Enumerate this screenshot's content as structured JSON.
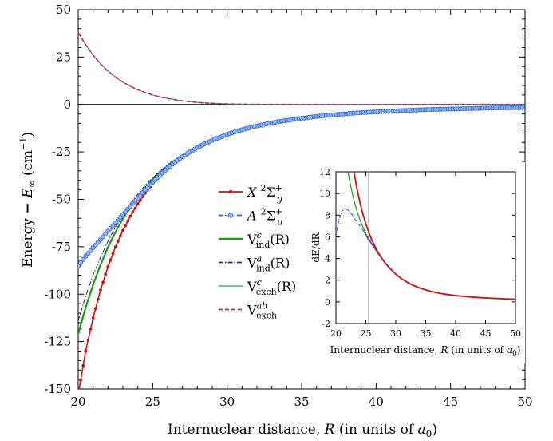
{
  "chart_data": [
    {
      "type": "line",
      "xlabel": "Internuclear distance, R (in units of a0)",
      "ylabel": "Energy − E∞ (cm−1)",
      "xlim": [
        20,
        50
      ],
      "ylim": [
        -150,
        50
      ],
      "x_ticks": [
        "20",
        "25",
        "30",
        "35",
        "40",
        "45",
        "50"
      ],
      "y_ticks": [
        "50",
        "25",
        "0",
        "-25",
        "-50",
        "-75",
        "-100",
        "-125",
        "-150"
      ],
      "grid": false,
      "legend_position": "center",
      "x": [
        20,
        20.5,
        21,
        21.5,
        22,
        22.5,
        23,
        23.5,
        24,
        24.5,
        25,
        25.5,
        26,
        26.5,
        27,
        27.5,
        28,
        28.5,
        29,
        29.5,
        30,
        30.5,
        31,
        31.5,
        32,
        32.5,
        33,
        33.5,
        34,
        34.5,
        35,
        35.5,
        36,
        36.5,
        37,
        37.5,
        38,
        38.5,
        39,
        39.5,
        40,
        40.5,
        41,
        41.5,
        42,
        42.5,
        43,
        43.5,
        44,
        44.5,
        45,
        45.5,
        46,
        46.5,
        47,
        47.5,
        48,
        48.5,
        49,
        49.5,
        50
      ],
      "series": [
        {
          "name": "X ²Σg⁺",
          "color": "#cc1111",
          "style": "solid-dots",
          "values": [
            -153,
            -130,
            -112.5,
            -97.8,
            -85.5,
            -75.1,
            -66.4,
            -58.9,
            -52.4,
            -46.7,
            -41.7,
            -37.4,
            -33.6,
            -30.4,
            -27.5,
            -25.0,
            -22.7,
            -20.7,
            -18.9,
            -17.3,
            -15.8,
            -14.5,
            -13.3,
            -12.3,
            -11.3,
            -10.5,
            -9.7,
            -9.0,
            -8.4,
            -7.8,
            -7.3,
            -6.8,
            -6.3,
            -5.9,
            -5.5,
            -5.2,
            -4.9,
            -4.6,
            -4.3,
            -4.1,
            -3.9,
            -3.7,
            -3.5,
            -3.3,
            -3.15,
            -3.0,
            -2.85,
            -2.7,
            -2.6,
            -2.5,
            -2.4,
            -2.3,
            -2.2,
            -2.1,
            -2.0,
            -1.92,
            -1.85,
            -1.78,
            -1.72,
            -1.66,
            -1.6
          ]
        },
        {
          "name": "A ²Σu⁺",
          "color": "#3366cc",
          "style": "dashdot-circles",
          "values": [
            -85,
            -80,
            -75.5,
            -71.2,
            -66.8,
            -62.4,
            -58.0,
            -53.7,
            -49.3,
            -45.0,
            -41.0,
            -37.2,
            -33.6,
            -30.4,
            -27.5,
            -25.0,
            -22.7,
            -20.7,
            -18.9,
            -17.3,
            -15.8,
            -14.5,
            -13.3,
            -12.3,
            -11.3,
            -10.5,
            -9.7,
            -9.0,
            -8.4,
            -7.8,
            -7.3,
            -6.8,
            -6.3,
            -5.9,
            -5.5,
            -5.2,
            -4.9,
            -4.6,
            -4.3,
            -4.1,
            -3.9,
            -3.7,
            -3.5,
            -3.3,
            -3.15,
            -3.0,
            -2.85,
            -2.7,
            -2.6,
            -2.5,
            -2.4,
            -2.3,
            -2.2,
            -2.1,
            -2.0,
            -1.92,
            -1.85,
            -1.78,
            -1.72,
            -1.66,
            -1.6
          ]
        },
        {
          "name": "Vind^c(R)",
          "color": "#1a9a1a",
          "style": "solid",
          "values": [
            -121,
            -107,
            -95,
            -84.5,
            -75.2,
            -67.2,
            -60.2,
            -54.0,
            -48.6,
            -43.8,
            -39.5,
            -35.7,
            -32.4,
            -29.5,
            -26.9,
            -24.6,
            -22.5,
            -20.6,
            -18.9,
            -17.3,
            -15.8,
            -14.5,
            -13.3,
            -12.3,
            -11.3,
            -10.5,
            -9.7,
            -9.0,
            -8.4,
            -7.8,
            -7.3,
            -6.8,
            -6.3,
            -5.9,
            -5.5,
            -5.2,
            -4.9,
            -4.6,
            -4.3,
            -4.1,
            -3.9,
            -3.7,
            -3.5,
            -3.3,
            -3.15,
            -3.0,
            -2.85,
            -2.7,
            -2.6,
            -2.5,
            -2.4,
            -2.3,
            -2.2,
            -2.1,
            -2.0,
            -1.92,
            -1.85,
            -1.78,
            -1.72,
            -1.66,
            -1.6
          ]
        },
        {
          "name": "Vind^a(R)",
          "color": "#3a2a70",
          "style": "dashdot",
          "values": [
            -114,
            -101,
            -90,
            -80.5,
            -72.0,
            -64.6,
            -58.1,
            -52.3,
            -47.2,
            -42.6,
            -38.6,
            -35.0,
            -31.8,
            -29.0,
            -26.5,
            -24.3,
            -22.3,
            -20.5,
            -18.8,
            -17.3,
            -15.8,
            -14.5,
            -13.3,
            -12.3,
            -11.3,
            -10.5,
            -9.7,
            -9.0,
            -8.4,
            -7.8,
            -7.3,
            -6.8,
            -6.3,
            -5.9,
            -5.5,
            -5.2,
            -4.9,
            -4.6,
            -4.3,
            -4.1,
            -3.9,
            -3.7,
            -3.5,
            -3.3,
            -3.15,
            -3.0,
            -2.85,
            -2.7,
            -2.6,
            -2.5,
            -2.4,
            -2.3,
            -2.2,
            -2.1,
            -2.0,
            -1.92,
            -1.85,
            -1.78,
            -1.72,
            -1.66,
            -1.6
          ]
        },
        {
          "name": "Vexch^c(R)",
          "color": "#2a9a8a",
          "style": "thin",
          "values": [
            38,
            31.5,
            26,
            21.4,
            17.6,
            14.4,
            11.8,
            9.6,
            7.8,
            6.3,
            5.0,
            4.0,
            3.2,
            2.5,
            1.9,
            1.5,
            1.1,
            0.8,
            0.6,
            0.4,
            0.3,
            0.2,
            0.15,
            0.1,
            0.07,
            0.05,
            0.03,
            0.02,
            0.01,
            0,
            0,
            0,
            0,
            0,
            0,
            0,
            0,
            0,
            0,
            0,
            0,
            0,
            0,
            0,
            0,
            0,
            0,
            0,
            0,
            0,
            0,
            0,
            0,
            0,
            0,
            0,
            0,
            0,
            0,
            0,
            0
          ]
        },
        {
          "name": "Vexch^ab",
          "color": "#cc2255",
          "style": "dashed",
          "values": [
            38,
            31.5,
            26,
            21.4,
            17.6,
            14.4,
            11.8,
            9.6,
            7.8,
            6.3,
            5.0,
            4.0,
            3.2,
            2.5,
            1.9,
            1.5,
            1.1,
            0.8,
            0.6,
            0.4,
            0.3,
            0.2,
            0.15,
            0.1,
            0.07,
            0.05,
            0.03,
            0.02,
            0.01,
            0,
            0,
            0,
            0,
            0,
            0,
            0,
            0,
            0,
            0,
            0,
            0,
            0,
            0,
            0,
            0,
            0,
            0,
            0,
            0,
            0,
            0,
            0,
            0,
            0,
            0,
            0,
            0,
            0,
            0,
            0,
            0
          ]
        }
      ]
    },
    {
      "type": "line",
      "xlabel": "Internuclear distance, R (in units of a0)",
      "ylabel": "dE/dR",
      "xlim": [
        20,
        50
      ],
      "ylim": [
        -2,
        12
      ],
      "x_ticks": [
        "20",
        "25",
        "30",
        "35",
        "40",
        "45",
        "50"
      ],
      "y_ticks": [
        "12",
        "10",
        "8",
        "6",
        "4",
        "2",
        "0",
        "-2"
      ],
      "vertical_line_x": 25.5,
      "x": [
        20,
        20.5,
        21,
        21.5,
        22,
        22.5,
        23,
        23.5,
        24,
        24.5,
        25,
        25.5,
        26,
        27,
        28,
        29,
        30,
        31,
        32,
        33,
        34,
        35,
        36,
        37,
        38,
        40,
        42,
        44,
        46,
        48,
        50
      ],
      "series": [
        {
          "name": "X",
          "color": "#cc1111",
          "values": [
            null,
            null,
            null,
            null,
            null,
            null,
            12.0,
            10.5,
            9.2,
            8.1,
            7.2,
            6.4,
            5.7,
            4.6,
            3.75,
            3.1,
            2.55,
            2.12,
            1.78,
            1.5,
            1.28,
            1.1,
            0.95,
            0.83,
            0.73,
            0.58,
            0.47,
            0.39,
            0.33,
            0.28,
            0.24
          ]
        },
        {
          "name": "A",
          "color": "#3366cc",
          "values": [
            6.0,
            7.6,
            8.4,
            8.6,
            8.5,
            8.2,
            7.8,
            7.4,
            7.0,
            6.6,
            6.2,
            5.85,
            5.4,
            4.5,
            3.72,
            3.08,
            2.55,
            2.12,
            1.78,
            1.5,
            1.28,
            1.1,
            0.95,
            0.83,
            0.73,
            0.58,
            0.47,
            0.39,
            0.33,
            0.28,
            0.24
          ]
        },
        {
          "name": "Vind^c",
          "color": "#1a9a1a",
          "values": [
            null,
            null,
            null,
            null,
            12.0,
            10.6,
            9.4,
            8.4,
            7.6,
            6.9,
            6.3,
            5.8,
            5.35,
            4.5,
            3.72,
            3.08,
            2.55,
            2.12,
            1.78,
            1.5,
            1.28,
            1.1,
            0.95,
            0.83,
            0.73,
            0.58,
            0.47,
            0.39,
            0.33,
            0.28,
            0.24
          ]
        },
        {
          "name": "Vind^a",
          "color": "#5a3a80",
          "values": [
            null,
            null,
            null,
            null,
            null,
            null,
            null,
            null,
            null,
            null,
            6.1,
            5.7,
            5.3,
            4.5,
            3.72,
            3.08,
            2.55,
            2.12,
            1.78,
            1.5,
            1.28,
            1.1,
            0.95,
            0.83,
            0.73,
            0.58,
            0.47,
            0.39,
            0.33,
            0.28,
            0.24
          ]
        }
      ]
    }
  ],
  "legend": [
    {
      "main": "X",
      "sup": "2",
      "sym": "Σ",
      "sub": "g",
      "sup2": "+",
      "color": "#cc1111",
      "style": "solid-dots"
    },
    {
      "main": "A",
      "sup": "2",
      "sym": "Σ",
      "sub": "u",
      "sup2": "+",
      "color": "#3366cc",
      "style": "dashdot-circles"
    },
    {
      "main": "V",
      "sup": "c",
      "sub": "ind",
      "arg": "(R)",
      "color": "#1a9a1a",
      "style": "solid"
    },
    {
      "main": "V",
      "sup": "a",
      "sub": "ind",
      "arg": "(R)",
      "color": "#3a2a70",
      "style": "dashdot"
    },
    {
      "main": "V",
      "sup": "c",
      "sub": "exch",
      "arg": "(R)",
      "color": "#2a9a8a",
      "style": "thin"
    },
    {
      "main": "V",
      "sup": "ab",
      "sub": "exch",
      "arg": "",
      "color": "#cc2255",
      "style": "dashed"
    }
  ]
}
